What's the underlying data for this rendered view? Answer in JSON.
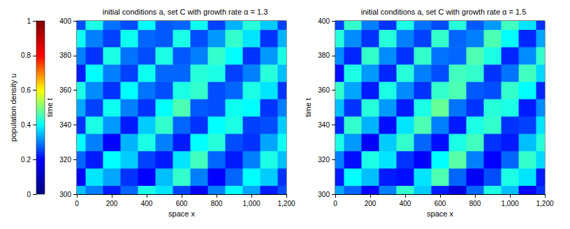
{
  "chart_data": [
    {
      "type": "heatmap",
      "title": "initial conditions a, set C with growth rate α = 1.3",
      "xlabel": "space x",
      "ylabel": "time t",
      "x": [
        0,
        100,
        200,
        300,
        400,
        500,
        600,
        700,
        800,
        900,
        1000,
        1100,
        1200
      ],
      "y": [
        300,
        310,
        320,
        330,
        340,
        350,
        360,
        370,
        380,
        390,
        400
      ],
      "z": [
        [
          0.35,
          0.3,
          0.22,
          0.28,
          0.42,
          0.38,
          0.25,
          0.18,
          0.3,
          0.4,
          0.33,
          0.22,
          0.26
        ],
        [
          0.2,
          0.38,
          0.33,
          0.24,
          0.2,
          0.35,
          0.44,
          0.3,
          0.2,
          0.28,
          0.4,
          0.36,
          0.24
        ],
        [
          0.28,
          0.22,
          0.4,
          0.36,
          0.25,
          0.22,
          0.38,
          0.45,
          0.28,
          0.22,
          0.3,
          0.42,
          0.35
        ],
        [
          0.4,
          0.3,
          0.2,
          0.34,
          0.42,
          0.3,
          0.22,
          0.4,
          0.43,
          0.26,
          0.24,
          0.33,
          0.41
        ],
        [
          0.24,
          0.42,
          0.32,
          0.22,
          0.36,
          0.44,
          0.28,
          0.24,
          0.4,
          0.42,
          0.25,
          0.26,
          0.36
        ],
        [
          0.33,
          0.25,
          0.41,
          0.3,
          0.24,
          0.4,
          0.46,
          0.27,
          0.26,
          0.41,
          0.4,
          0.24,
          0.3
        ],
        [
          0.42,
          0.31,
          0.24,
          0.4,
          0.29,
          0.26,
          0.42,
          0.44,
          0.26,
          0.28,
          0.42,
          0.38,
          0.24
        ],
        [
          0.22,
          0.4,
          0.3,
          0.25,
          0.41,
          0.28,
          0.28,
          0.43,
          0.42,
          0.25,
          0.3,
          0.43,
          0.35
        ],
        [
          0.3,
          0.24,
          0.42,
          0.29,
          0.26,
          0.42,
          0.27,
          0.3,
          0.44,
          0.4,
          0.24,
          0.32,
          0.42
        ],
        [
          0.41,
          0.3,
          0.25,
          0.41,
          0.28,
          0.27,
          0.42,
          0.26,
          0.32,
          0.44,
          0.38,
          0.24,
          0.34
        ],
        [
          0.26,
          0.42,
          0.29,
          0.26,
          0.4,
          0.27,
          0.28,
          0.41,
          0.25,
          0.34,
          0.43,
          0.36,
          0.25
        ]
      ],
      "xlim": [
        0,
        1200
      ],
      "xticks": [
        0,
        200,
        400,
        600,
        800,
        1000,
        1200
      ],
      "ylim": [
        300,
        400
      ],
      "yticks": [
        300,
        320,
        340,
        360,
        380,
        400
      ],
      "colorbar": {
        "label": "population density u",
        "range": [
          0,
          1
        ],
        "ticks": [
          0,
          0.2,
          0.4,
          0.6,
          0.8,
          1
        ]
      },
      "grid": true
    },
    {
      "type": "heatmap",
      "title": "initial conditions a, set C with growth rate α = 1.5",
      "xlabel": "space x",
      "ylabel": "time t",
      "x": [
        0,
        100,
        200,
        300,
        400,
        500,
        600,
        700,
        800,
        900,
        1000,
        1100,
        1200
      ],
      "y": [
        300,
        310,
        320,
        330,
        340,
        350,
        360,
        370,
        380,
        390,
        400
      ],
      "z": [
        [
          0.33,
          0.28,
          0.2,
          0.3,
          0.44,
          0.36,
          0.22,
          0.15,
          0.28,
          0.42,
          0.35,
          0.2,
          0.24
        ],
        [
          0.22,
          0.4,
          0.35,
          0.22,
          0.21,
          0.38,
          0.46,
          0.28,
          0.18,
          0.26,
          0.42,
          0.38,
          0.22
        ],
        [
          0.3,
          0.21,
          0.42,
          0.38,
          0.24,
          0.2,
          0.4,
          0.47,
          0.3,
          0.2,
          0.28,
          0.44,
          0.37
        ],
        [
          0.42,
          0.32,
          0.19,
          0.36,
          0.44,
          0.28,
          0.21,
          0.42,
          0.45,
          0.24,
          0.22,
          0.35,
          0.43
        ],
        [
          0.23,
          0.44,
          0.34,
          0.21,
          0.38,
          0.46,
          0.3,
          0.22,
          0.42,
          0.44,
          0.24,
          0.25,
          0.38
        ],
        [
          0.35,
          0.24,
          0.43,
          0.32,
          0.22,
          0.42,
          0.48,
          0.29,
          0.24,
          0.43,
          0.42,
          0.22,
          0.31
        ],
        [
          0.44,
          0.33,
          0.22,
          0.42,
          0.31,
          0.24,
          0.44,
          0.46,
          0.27,
          0.26,
          0.44,
          0.4,
          0.23
        ],
        [
          0.21,
          0.42,
          0.32,
          0.23,
          0.43,
          0.3,
          0.26,
          0.45,
          0.44,
          0.24,
          0.29,
          0.45,
          0.37
        ],
        [
          0.31,
          0.23,
          0.44,
          0.31,
          0.24,
          0.44,
          0.29,
          0.28,
          0.46,
          0.42,
          0.23,
          0.31,
          0.44
        ],
        [
          0.43,
          0.31,
          0.24,
          0.43,
          0.3,
          0.25,
          0.44,
          0.28,
          0.3,
          0.46,
          0.4,
          0.23,
          0.33
        ],
        [
          0.25,
          0.44,
          0.3,
          0.24,
          0.42,
          0.29,
          0.26,
          0.43,
          0.27,
          0.32,
          0.45,
          0.38,
          0.24
        ]
      ],
      "xlim": [
        0,
        1200
      ],
      "xticks": [
        0,
        200,
        400,
        600,
        800,
        1000,
        1200
      ],
      "ylim": [
        300,
        400
      ],
      "yticks": [
        300,
        320,
        340,
        360,
        380,
        400
      ],
      "grid": true
    }
  ]
}
